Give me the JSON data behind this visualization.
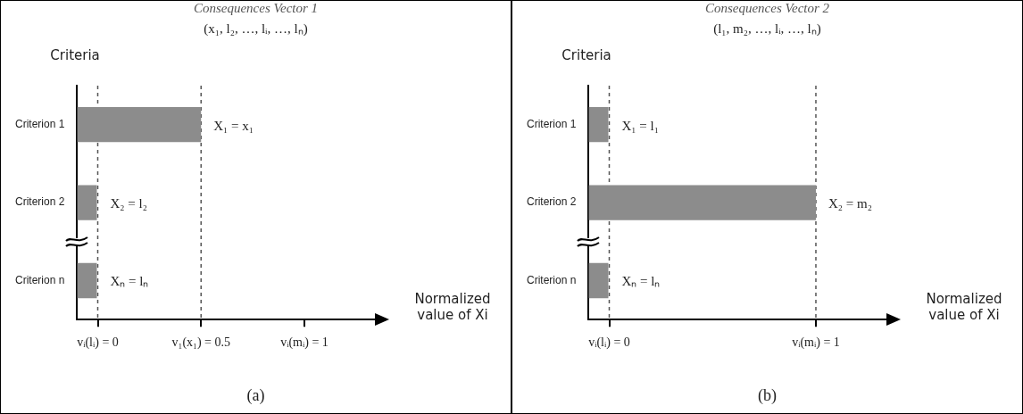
{
  "chart_data": [
    {
      "type": "bar",
      "orientation": "horizontal",
      "title": "Consequences Vector 1",
      "subtitle": "(x₁, l₂, …, lᵢ, …, lₙ)",
      "xlabel": "Normalized value of Xi",
      "ylabel": "Criteria",
      "categories": [
        "Criterion 1",
        "Criterion 2",
        "Criterion n"
      ],
      "values": [
        0.6,
        0.1,
        0.1
      ],
      "base": [
        -0.1,
        -0.1,
        -0.1
      ],
      "color": "#8c8c8c",
      "xlim": [
        -0.1,
        1.35
      ],
      "xticks": [
        {
          "value": 0,
          "label": "vᵢ(lᵢ) = 0"
        },
        {
          "value": 0.5,
          "label": "v₁(x₁) = 0.5"
        },
        {
          "value": 1,
          "label": "vᵢ(mᵢ) = 1"
        }
      ],
      "ref_lines": [
        {
          "axis": "x",
          "value": 0,
          "line_style": "dashed"
        },
        {
          "axis": "x",
          "value": 0.5,
          "line_style": "dashed"
        }
      ],
      "annotations": [
        {
          "text": "X₁ = x₁",
          "x": 0.5,
          "y": "Criterion 1"
        },
        {
          "text": "X₂ = l₂",
          "x": 0,
          "y": "Criterion 2"
        },
        {
          "text": "Xₙ = lₙ",
          "x": 0,
          "y": "Criterion n"
        },
        "(a)"
      ],
      "grid": false,
      "legend": false
    },
    {
      "type": "bar",
      "orientation": "horizontal",
      "title": "Consequences Vector 2",
      "subtitle": "(l₁, m₂, …, lᵢ, …, lₙ)",
      "xlabel": "Normalized value of Xi",
      "ylabel": "Criteria",
      "categories": [
        "Criterion 1",
        "Criterion 2",
        "Criterion n"
      ],
      "values": [
        0.1,
        1.1,
        0.1
      ],
      "base": [
        -0.1,
        -0.1,
        -0.1
      ],
      "color": "#8c8c8c",
      "xlim": [
        -0.1,
        1.35
      ],
      "xticks": [
        {
          "value": 0,
          "label": "vᵢ(lᵢ) = 0"
        },
        {
          "value": 1,
          "label": "vᵢ(mᵢ) = 1"
        }
      ],
      "ref_lines": [
        {
          "axis": "x",
          "value": 0,
          "line_style": "dashed"
        },
        {
          "axis": "x",
          "value": 1,
          "line_style": "dashed"
        }
      ],
      "annotations": [
        {
          "text": "X₁ = l₁",
          "x": 0,
          "y": "Criterion 1"
        },
        {
          "text": "X₂ = m₂",
          "x": 1,
          "y": "Criterion 2"
        },
        {
          "text": "Xₙ = lₙ",
          "x": 0,
          "y": "Criterion n"
        },
        "(b)"
      ],
      "grid": false,
      "legend": false
    }
  ]
}
